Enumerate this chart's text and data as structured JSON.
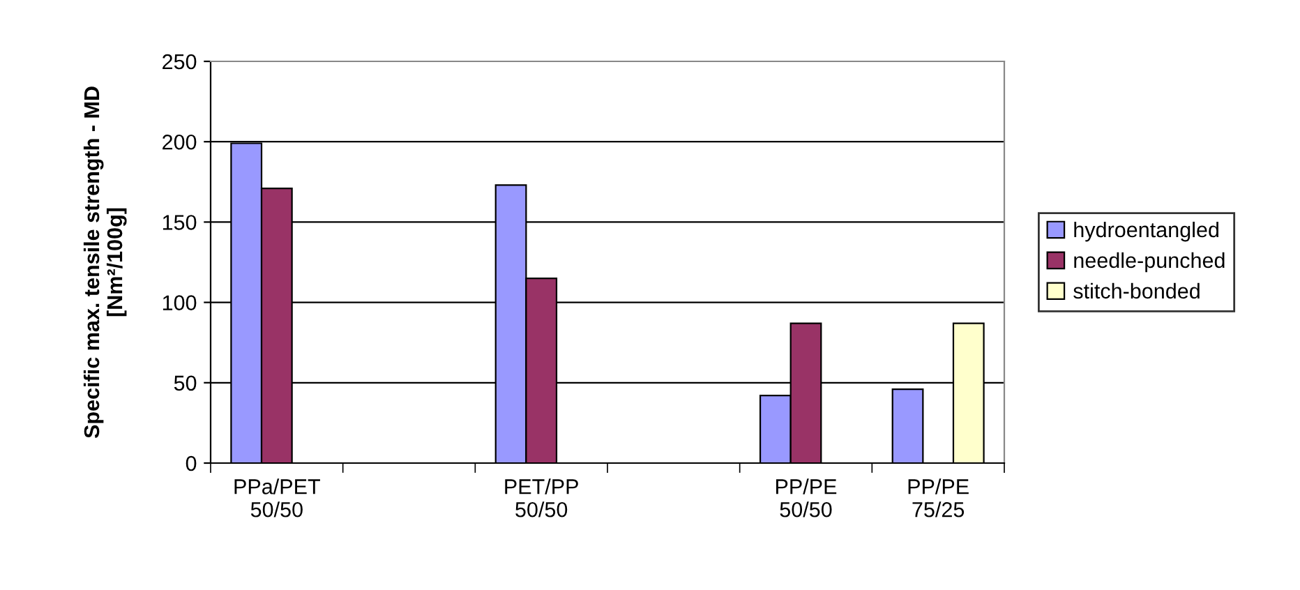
{
  "chart_data": {
    "type": "bar",
    "ylabel": "Specific max. tensile strength - MD\n[Nm²/100g]",
    "categories": [
      "PPa/PET\n50/50",
      null,
      "PET/PP\n50/50",
      null,
      "PP/PE\n50/50",
      "PP/PE\n75/25"
    ],
    "series": [
      {
        "name": "hydroentangled",
        "color": "#9999ff",
        "values": [
          199,
          null,
          173,
          null,
          42,
          46
        ]
      },
      {
        "name": "needle-punched",
        "color": "#993366",
        "values": [
          171,
          null,
          115,
          null,
          87,
          null
        ]
      },
      {
        "name": "stitch-bonded",
        "color": "#ffffcc",
        "values": [
          null,
          null,
          null,
          null,
          null,
          87
        ]
      }
    ],
    "ylim": [
      0,
      250
    ],
    "yticks": [
      0,
      50,
      100,
      150,
      200,
      250
    ],
    "grid": "y",
    "legend": "right"
  }
}
